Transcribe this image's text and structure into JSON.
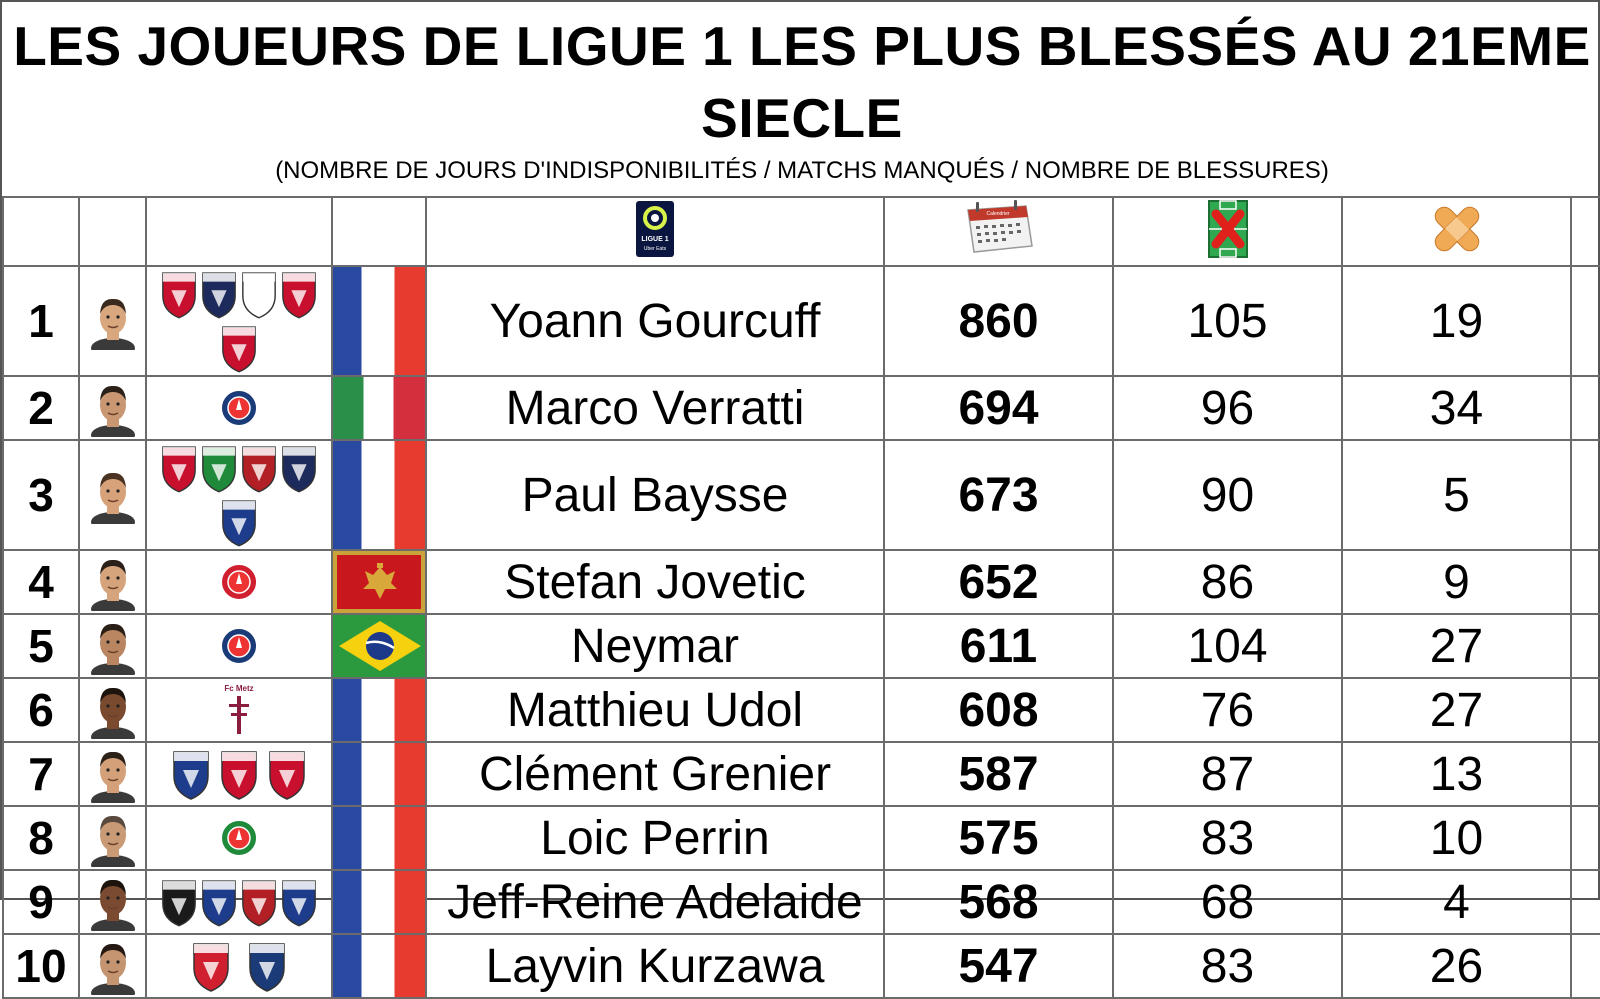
{
  "title": "LES JOUEURS DE LIGUE 1 LES PLUS BLESSÉS AU 21EME SIECLE",
  "subtitle": "(NOMBRE DE JOURS D'INDISPONIBILITÉS / MATCHS MANQUÉS / NOMBRE DE BLESSURES)",
  "header": {
    "league_logo_text": "LIGUE 1",
    "league_logo_subtext": "Uber Eats",
    "calendar_text": "Calendrier",
    "icons": [
      "ligue1-logo-icon",
      "calendar-icon",
      "pitch-cross-icon",
      "bandage-icon"
    ]
  },
  "colors": {
    "border": "#6b6b6b",
    "title": "#000000"
  },
  "players": [
    {
      "rank": "1",
      "name": "Yoann Gourcuff",
      "days": "860",
      "matches": "105",
      "injuries": "19",
      "flag": "fr",
      "clubs": [
        "#c8102e",
        "#1d2b5c",
        "#ffffff",
        "#c8102e",
        "#c8102e"
      ],
      "skin": "#d9a77e",
      "hair": "#3a2a1e"
    },
    {
      "rank": "2",
      "name": "Marco Verratti",
      "days": "694",
      "matches": "96",
      "injuries": "34",
      "flag": "it",
      "clubs": [
        "#1b3a78"
      ],
      "skin": "#c99872",
      "hair": "#2b2119"
    },
    {
      "rank": "3",
      "name": "Paul Baysse",
      "days": "673",
      "matches": "90",
      "injuries": "5",
      "flag": "fr",
      "clubs": [
        "#c8102e",
        "#1f8a3a",
        "#b21f24",
        "#1d2b5c",
        "#1d3c8c"
      ],
      "skin": "#d7a27a",
      "hair": "#4a3322"
    },
    {
      "rank": "4",
      "name": "Stefan Jovetic",
      "days": "652",
      "matches": "86",
      "injuries": "9",
      "flag": "me",
      "clubs": [
        "#d01f2f"
      ],
      "skin": "#d6a47c",
      "hair": "#2a2019"
    },
    {
      "rank": "5",
      "name": "Neymar",
      "days": "611",
      "matches": "104",
      "injuries": "27",
      "flag": "br",
      "clubs": [
        "#1b3a78"
      ],
      "skin": "#b98661",
      "hair": "#2a1f17"
    },
    {
      "rank": "6",
      "name": "Matthieu Udol",
      "days": "608",
      "matches": "76",
      "injuries": "27",
      "flag": "fr",
      "clubs": [
        "#8b1e3f"
      ],
      "club_text": "Fc Metz",
      "skin": "#7a4a2f",
      "hair": "#1e140e"
    },
    {
      "rank": "7",
      "name": "Clément Grenier",
      "days": "587",
      "matches": "87",
      "injuries": "13",
      "flag": "fr",
      "clubs": [
        "#1d3c8c",
        "#c8102e",
        "#c8102e"
      ],
      "skin": "#d3a07a",
      "hair": "#2b2119"
    },
    {
      "rank": "8",
      "name": "Loic Perrin",
      "days": "575",
      "matches": "83",
      "injuries": "10",
      "flag": "fr",
      "clubs": [
        "#1f8a3a"
      ],
      "skin": "#c99a76",
      "hair": "#5a4a3e"
    },
    {
      "rank": "9",
      "name": "Jeff-Reine Adelaide",
      "days": "568",
      "matches": "68",
      "injuries": "4",
      "flag": "fr",
      "clubs": [
        "#1a1a1a",
        "#1d3c8c",
        "#b21f24",
        "#1d3c8c"
      ],
      "skin": "#7b4b31",
      "hair": "#1c130d"
    },
    {
      "rank": "10",
      "name": "Layvin Kurzawa",
      "days": "547",
      "matches": "83",
      "injuries": "26",
      "flag": "fr",
      "clubs": [
        "#d01f2f",
        "#1b3a78"
      ],
      "skin": "#c59470",
      "hair": "#241a13"
    }
  ]
}
